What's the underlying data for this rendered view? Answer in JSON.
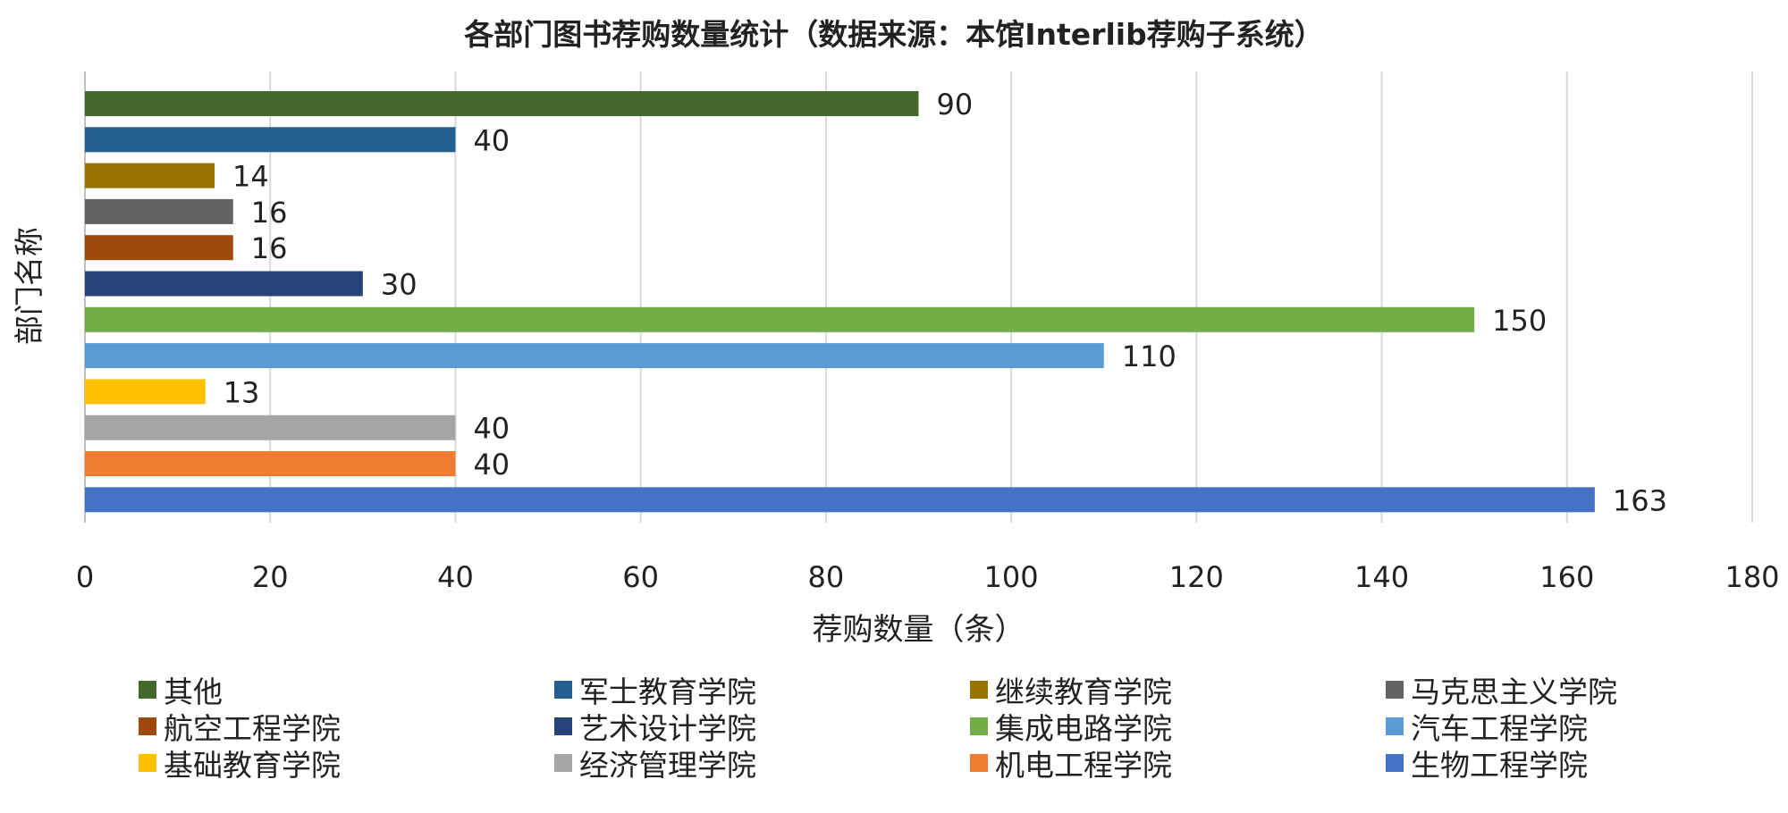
{
  "chart_data": {
    "type": "bar",
    "orientation": "horizontal",
    "title": "各部门图书荐购数量统计（数据来源：本馆Interlib荐购子系统）",
    "xlabel": "荐购数量（条）",
    "ylabel": "部门名称",
    "xlim": [
      0,
      180
    ],
    "xticks": [
      0,
      20,
      40,
      60,
      80,
      100,
      120,
      140,
      160,
      180
    ],
    "grid": "vertical",
    "legend_position": "bottom",
    "series": [
      {
        "name": "其他",
        "value": 90,
        "color": "#43682B"
      },
      {
        "name": "军士教育学院",
        "value": 40,
        "color": "#255E91"
      },
      {
        "name": "继续教育学院",
        "value": 14,
        "color": "#997300"
      },
      {
        "name": "马克思主义学院",
        "value": 16,
        "color": "#636363"
      },
      {
        "name": "航空工程学院",
        "value": 16,
        "color": "#9E480E"
      },
      {
        "name": "艺术设计学院",
        "value": 30,
        "color": "#264478"
      },
      {
        "name": "集成电路学院",
        "value": 150,
        "color": "#70AD47"
      },
      {
        "name": "汽车工程学院",
        "value": 110,
        "color": "#5B9BD5"
      },
      {
        "name": "基础教育学院",
        "value": 13,
        "color": "#FFC000"
      },
      {
        "name": "经济管理学院",
        "value": 40,
        "color": "#A5A5A5"
      },
      {
        "name": "机电工程学院",
        "value": 40,
        "color": "#ED7D31"
      },
      {
        "name": "生物工程学院",
        "value": 163,
        "color": "#4472C4"
      }
    ]
  }
}
